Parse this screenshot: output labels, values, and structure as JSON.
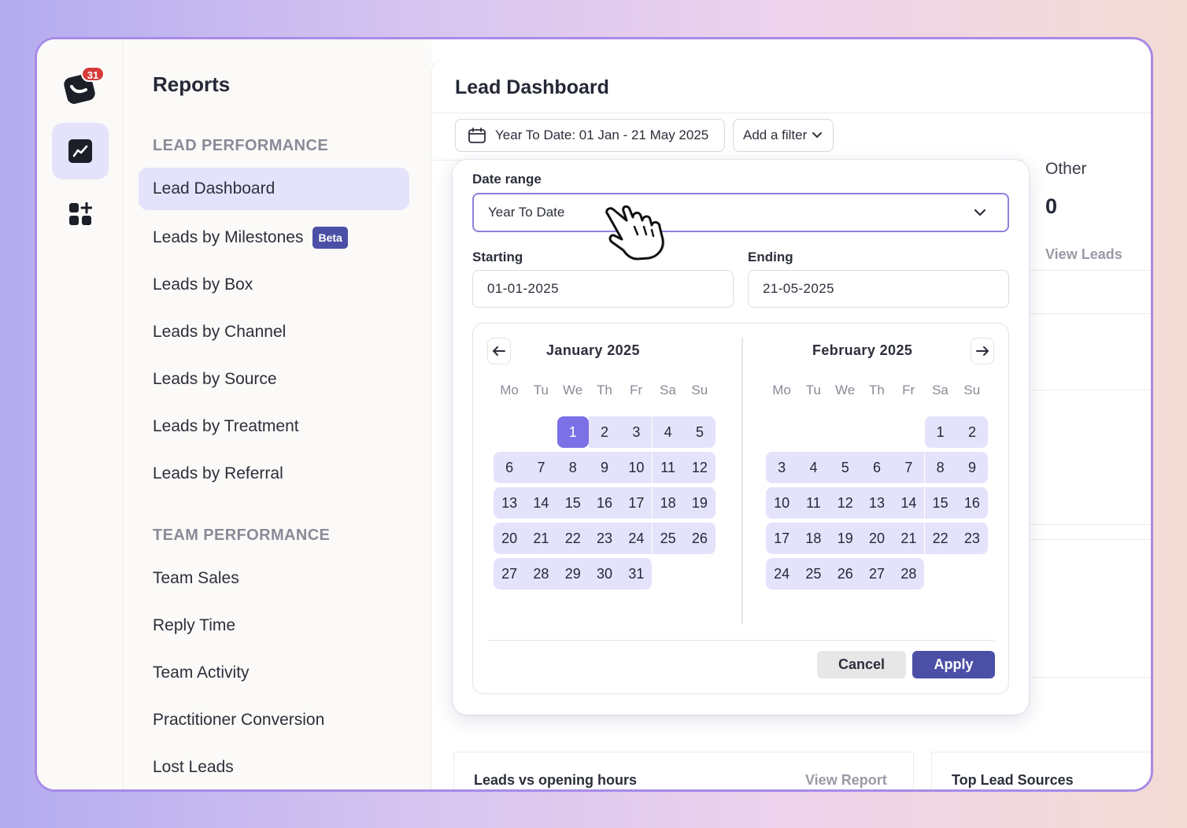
{
  "rail": {
    "notification_count": "31",
    "icons": [
      "app-logo",
      "reports-chart-icon",
      "apps-grid-icon"
    ]
  },
  "sidebar": {
    "title": "Reports",
    "sections": [
      {
        "heading": "LEAD PERFORMANCE",
        "items": [
          {
            "label": "Lead Dashboard",
            "active": true
          },
          {
            "label": "Leads by Milestones",
            "badge": "Beta"
          },
          {
            "label": "Leads by Box"
          },
          {
            "label": "Leads by Channel"
          },
          {
            "label": "Leads by Source"
          },
          {
            "label": "Leads by Treatment"
          },
          {
            "label": "Leads by Referral"
          }
        ]
      },
      {
        "heading": "TEAM PERFORMANCE",
        "items": [
          {
            "label": "Team Sales"
          },
          {
            "label": "Reply Time"
          },
          {
            "label": "Team Activity"
          },
          {
            "label": "Practitioner Conversion"
          },
          {
            "label": "Lost Leads"
          }
        ]
      }
    ]
  },
  "main": {
    "title": "Lead Dashboard",
    "date_chip": "Year To Date: 01 Jan - 21 May 2025",
    "filter_chip": "Add a filter",
    "other_card": {
      "label": "Other",
      "value": "0",
      "link": "View Leads"
    },
    "bottom_cards": [
      {
        "title": "Leads vs opening hours",
        "link": "View Report"
      },
      {
        "title": "Top Lead Sources"
      }
    ]
  },
  "date_picker": {
    "range_label": "Date range",
    "range_value": "Year To Date",
    "starting_label": "Starting",
    "starting_value": "01-01-2025",
    "ending_label": "Ending",
    "ending_value": "21-05-2025",
    "weekdays": [
      "Mo",
      "Tu",
      "We",
      "Th",
      "Fr",
      "Sa",
      "Su"
    ],
    "months": [
      {
        "title": "January 2025",
        "first_weekday_index": 2,
        "days": 31,
        "selected_day": 1
      },
      {
        "title": "February 2025",
        "first_weekday_index": 5,
        "days": 28
      }
    ],
    "cancel_label": "Cancel",
    "apply_label": "Apply",
    "colors": {
      "accent": "#4b4fa6",
      "selected": "#7b70e6",
      "range": "#e4e3fb"
    }
  }
}
